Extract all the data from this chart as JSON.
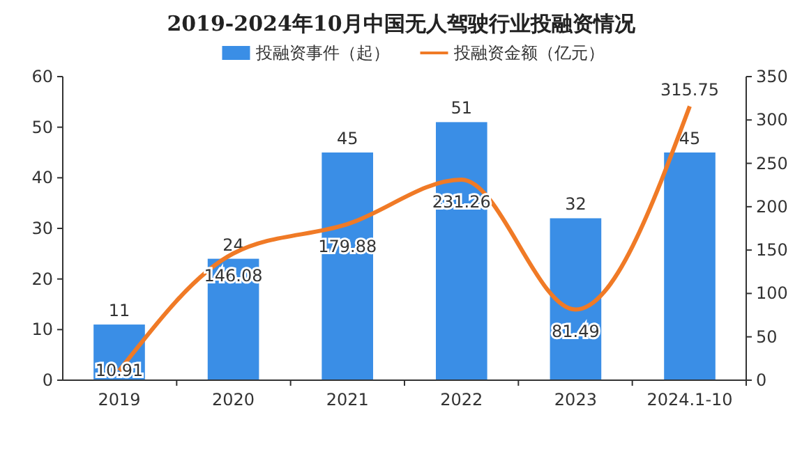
{
  "chart_data": {
    "type": "bar",
    "title": "2019-2024年10月中国无人驾驶行业投融资情况",
    "categories": [
      "2019",
      "2020",
      "2021",
      "2022",
      "2023",
      "2024.1-10"
    ],
    "series": [
      {
        "name": "投融资事件（起）",
        "color": "#3a8ee6",
        "values": [
          11,
          24,
          45,
          51,
          32,
          45
        ]
      },
      {
        "name": "投融资金额（亿元）",
        "type": "line",
        "axis": "y2",
        "color": "#f07a26",
        "values": [
          10.91,
          146.08,
          179.88,
          231.26,
          81.49,
          315.75
        ]
      }
    ],
    "ylim": [
      0,
      60
    ],
    "yticks": [
      0,
      10,
      20,
      30,
      40,
      50,
      60
    ],
    "y2lim": [
      0,
      350
    ],
    "y2ticks": [
      0,
      50,
      100,
      150,
      200,
      250,
      300,
      350
    ],
    "data_labels": true,
    "legend": "top",
    "grid": false,
    "marker": "none",
    "line_style": "solid"
  }
}
